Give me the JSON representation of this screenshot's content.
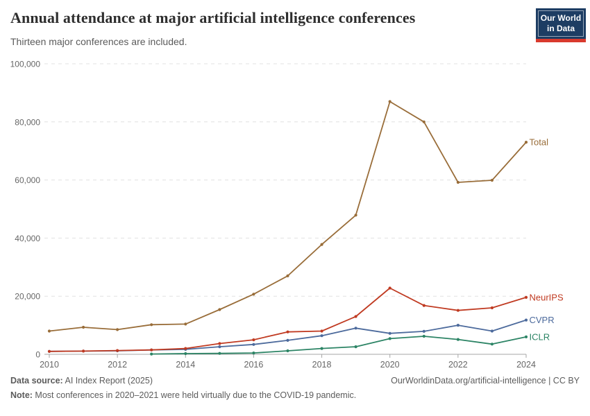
{
  "header": {
    "title": "Annual attendance at major artificial intelligence conferences",
    "subtitle": "Thirteen major conferences are included.",
    "logo": {
      "line1": "Our World",
      "line2": "in Data",
      "bg_color": "#1d3d63",
      "bar_color": "#d93a2d"
    }
  },
  "chart_data": {
    "type": "line",
    "title": "Annual attendance at major artificial intelligence conferences",
    "subtitle": "Thirteen major conferences are included.",
    "xlabel": "",
    "ylabel": "",
    "x": [
      2010,
      2011,
      2012,
      2013,
      2014,
      2015,
      2016,
      2017,
      2018,
      2019,
      2020,
      2021,
      2022,
      2023,
      2024
    ],
    "series": [
      {
        "name": "Total",
        "color": "#996D39",
        "values": [
          8000,
          9300,
          8500,
          10200,
          10400,
          15400,
          20700,
          27000,
          37800,
          47900,
          87000,
          80000,
          59200,
          59900,
          73000
        ]
      },
      {
        "name": "NeurIPS",
        "color": "#C03A21",
        "values": [
          1000,
          1100,
          1300,
          1500,
          2000,
          3700,
          5000,
          7700,
          8000,
          13000,
          22800,
          16800,
          15100,
          16000,
          19600
        ]
      },
      {
        "name": "CVPR",
        "color": "#4C6A9C",
        "values": [
          1000,
          1100,
          1200,
          1500,
          1700,
          2600,
          3400,
          4800,
          6400,
          9000,
          7200,
          7900,
          10000,
          8000,
          11800
        ]
      },
      {
        "name": "ICLR",
        "color": "#2C8465",
        "values": [
          null,
          null,
          null,
          100,
          250,
          300,
          450,
          1200,
          2000,
          2600,
          5400,
          6200,
          5100,
          3500,
          6000
        ]
      }
    ],
    "ylim": [
      0,
      100000
    ],
    "yticks": [
      0,
      20000,
      40000,
      60000,
      80000,
      100000
    ],
    "ytick_labels": [
      "0",
      "20,000",
      "40,000",
      "60,000",
      "80,000",
      "100,000"
    ],
    "xticks": [
      2010,
      2012,
      2014,
      2016,
      2018,
      2020,
      2022,
      2024
    ],
    "grid": "horizontal dashed",
    "legend": "end-of-line labels"
  },
  "footer": {
    "source_label": "Data source:",
    "source_value": " AI Index Report (2025)",
    "url": "OurWorldinData.org/artificial-intelligence",
    "separator": " | ",
    "license": "CC BY",
    "note_label": "Note:",
    "note_value": " Most conferences in 2020–2021 were held virtually due to the COVID-19 pandemic."
  }
}
